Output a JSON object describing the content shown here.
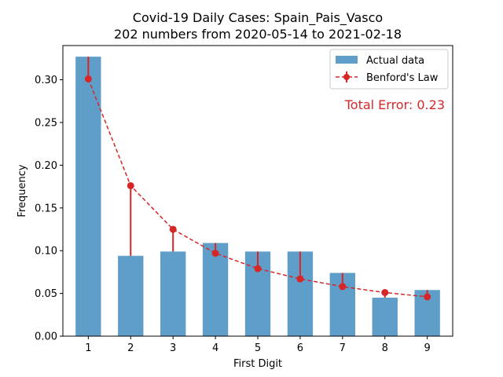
{
  "chart_data": {
    "type": "bar",
    "title": "Covid-19 Daily Cases: Spain_Pais_Vasco",
    "subtitle": "202 numbers from 2020-05-14 to 2021-02-18",
    "xlabel": "First Digit",
    "ylabel": "Frequency",
    "categories": [
      "1",
      "2",
      "3",
      "4",
      "5",
      "6",
      "7",
      "8",
      "9"
    ],
    "ylim": [
      0,
      0.34
    ],
    "yticks": [
      "0.00",
      "0.05",
      "0.10",
      "0.15",
      "0.20",
      "0.25",
      "0.30"
    ],
    "series": [
      {
        "name": "Actual data",
        "kind": "bar",
        "color": "#5f9ec9",
        "values": [
          0.327,
          0.094,
          0.099,
          0.109,
          0.099,
          0.099,
          0.074,
          0.045,
          0.054
        ]
      },
      {
        "name": "Benford's Law",
        "kind": "line-dashed-markers",
        "color": "#d62728",
        "values": [
          0.301,
          0.176,
          0.125,
          0.097,
          0.079,
          0.067,
          0.058,
          0.051,
          0.046
        ]
      }
    ],
    "annotation": "Total Error: 0.23",
    "annotation_color": "#d62728",
    "legend_position": "top-right",
    "grid": false
  }
}
